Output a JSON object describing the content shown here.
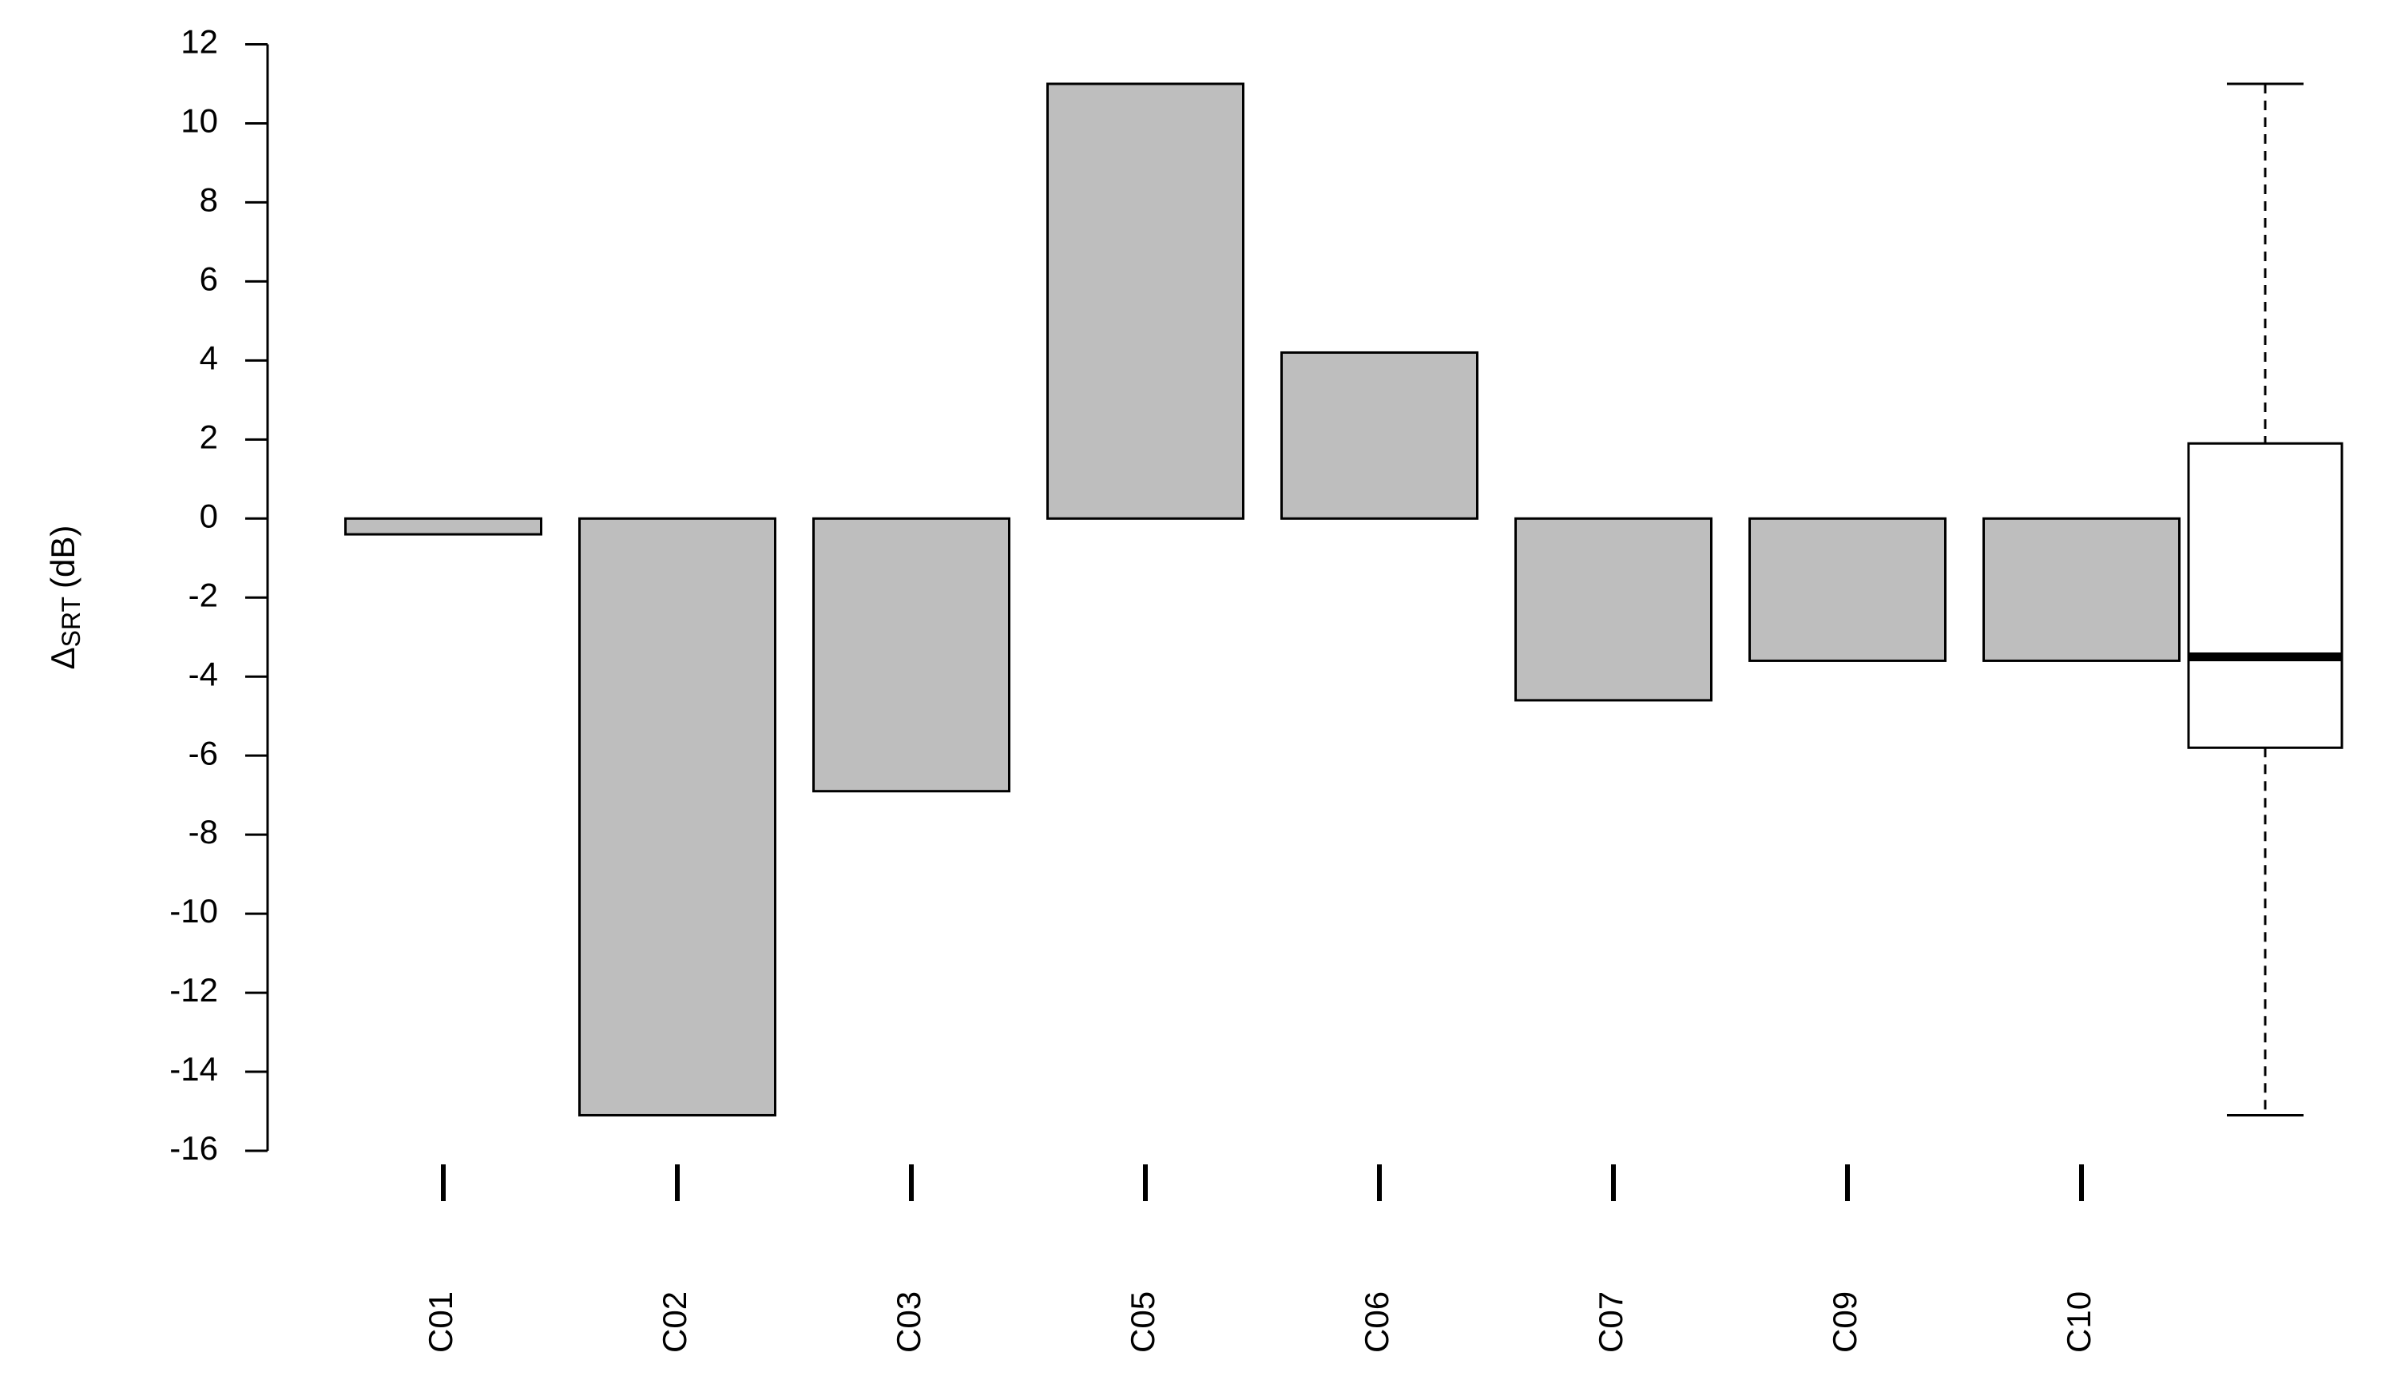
{
  "chart_data": {
    "type": "bar",
    "y_label": {
      "symbol": "Δ",
      "subscript": "SRT",
      "unit": "(dB)"
    },
    "categories": [
      "C01",
      "C02",
      "C03",
      "C05",
      "C06",
      "C07",
      "C09",
      "C10"
    ],
    "values": [
      -0.4,
      -15.1,
      -6.9,
      11,
      4.2,
      -4.6,
      -3.6,
      -3.6
    ],
    "color": "#bebebe",
    "ylim": [
      -16,
      12
    ],
    "yticks": [
      -16,
      -14,
      -12,
      -10,
      -8,
      -6,
      -4,
      -2,
      0,
      2,
      4,
      6,
      8,
      10,
      12
    ],
    "boxplot": {
      "min": -15.1,
      "q1": -5.8,
      "median": -3.5,
      "q3": 1.9,
      "max": 11,
      "color": "#ffffff"
    }
  }
}
